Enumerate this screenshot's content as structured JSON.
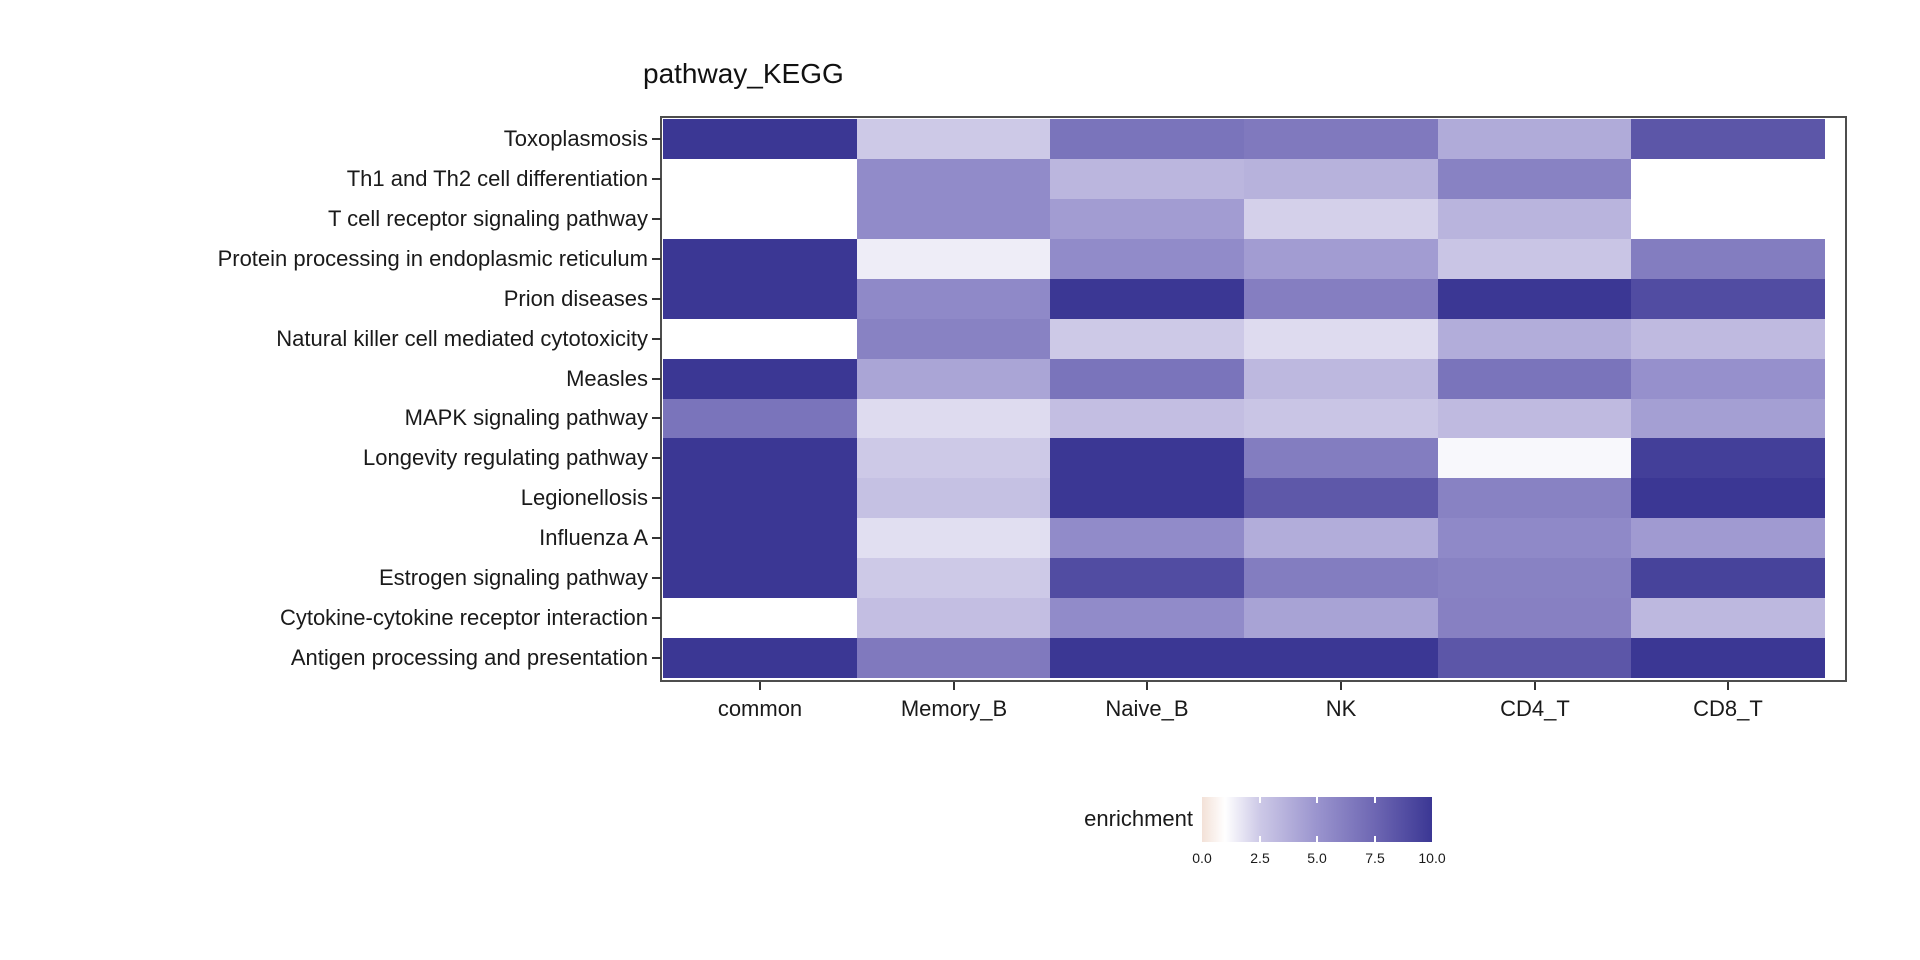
{
  "chart_data": {
    "type": "heatmap",
    "title": "pathway_KEGG",
    "x_categories": [
      "common",
      "Memory_B",
      "Naive_B",
      "NK",
      "CD4_T",
      "CD8_T"
    ],
    "y_categories": [
      "Toxoplasmosis",
      "Th1 and Th2 cell differentiation",
      "T cell receptor signaling pathway",
      "Protein processing in endoplasmic reticulum",
      "Prion diseases",
      "Natural killer cell mediated cytotoxicity",
      "Measles",
      "MAPK signaling pathway",
      "Longevity regulating pathway",
      "Legionellosis",
      "Influenza A",
      "Estrogen signaling pathway",
      "Cytokine-cytokine receptor interaction",
      "Antigen processing and presentation"
    ],
    "values": [
      [
        10,
        2.5,
        6.8,
        6.5,
        3.9,
        8.4
      ],
      [
        null,
        5.5,
        3.4,
        3.6,
        6.0,
        null
      ],
      [
        null,
        5.5,
        4.6,
        2.3,
        3.5,
        null
      ],
      [
        10,
        1.5,
        5.5,
        4.6,
        2.7,
        6.3
      ],
      [
        10,
        5.6,
        10,
        6.2,
        10,
        8.9
      ],
      [
        null,
        6.0,
        2.5,
        2.0,
        3.8,
        3.2
      ],
      [
        10,
        4.2,
        6.8,
        3.3,
        6.8,
        5.2
      ],
      [
        6.8,
        2.0,
        3.0,
        2.7,
        3.2,
        4.5
      ],
      [
        10,
        2.5,
        10,
        6.3,
        1.2,
        9.6
      ],
      [
        10,
        2.9,
        10,
        8.3,
        6.0,
        10
      ],
      [
        10,
        1.9,
        5.5,
        3.8,
        5.6,
        4.7
      ],
      [
        10,
        2.5,
        8.9,
        6.3,
        6.0,
        9.4
      ],
      [
        null,
        3.0,
        5.5,
        4.3,
        6.1,
        3.3
      ],
      [
        10,
        6.5,
        10,
        10,
        8.4,
        10
      ]
    ],
    "value_range": [
      0,
      10
    ],
    "na_color": "#ffffff",
    "colormap": [
      {
        "value": 0,
        "color": "#f3e1d7"
      },
      {
        "value": 1,
        "color": "#ffffff"
      },
      {
        "value": 2.5,
        "color": "#cdc9e7"
      },
      {
        "value": 5,
        "color": "#9a94ce"
      },
      {
        "value": 7.5,
        "color": "#6e67b3"
      },
      {
        "value": 10,
        "color": "#3b3794"
      }
    ],
    "legend": {
      "label": "enrichment",
      "tick_labels": [
        "0.0",
        "2.5",
        "5.0",
        "7.5",
        "10.0"
      ],
      "tick_values": [
        0,
        2.5,
        5,
        7.5,
        10
      ],
      "position": "bottom"
    },
    "grid": false,
    "panel_border_color": "#4d4d4d",
    "tick_color": "#333333"
  }
}
